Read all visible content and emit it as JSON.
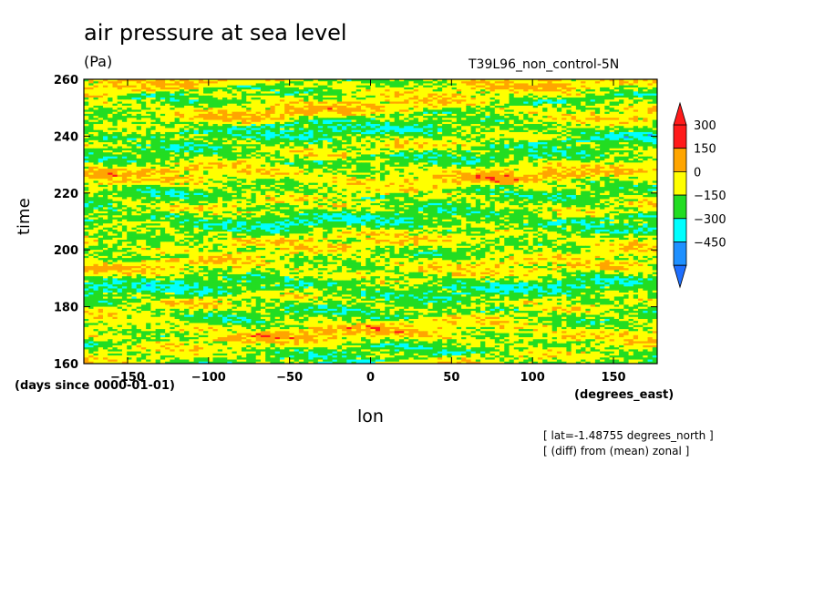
{
  "chart_data": {
    "type": "heatmap",
    "title": "air pressure at sea level",
    "units": "(Pa)",
    "run_label": "T39L96_non_control-5N",
    "xlabel": "lon",
    "ylabel": "time",
    "x_units": "(degrees_east)",
    "y_units": "(days since 0000-01-01)",
    "annotations": [
      "[ lat=-1.48755 degrees_north ]",
      "[ (diff) from (mean) zonal ]"
    ],
    "xlim": [
      -177,
      177
    ],
    "ylim": [
      160,
      260
    ],
    "xticks": [
      -150,
      -100,
      -50,
      0,
      50,
      100,
      150
    ],
    "xtick_labels": [
      "−150",
      "−100",
      "−50",
      "0",
      "50",
      "100",
      "150"
    ],
    "yticks": [
      160,
      180,
      200,
      220,
      240,
      260
    ],
    "ytick_labels": [
      "160",
      "180",
      "200",
      "220",
      "240",
      "260"
    ],
    "colorbar": {
      "levels": [
        300,
        150,
        0,
        -150,
        -300,
        -450
      ],
      "level_labels": [
        "300",
        "150",
        "0",
        "−150",
        "−300",
        "−450"
      ],
      "colors": [
        "#ff1a1a",
        "#ffa500",
        "#ffff00",
        "#22dd22",
        "#00ffff",
        "#1e90ff"
      ],
      "extend": "both",
      "top_arrow_color": "#ff1a1a",
      "bottom_arrow_color": "#1e6fff"
    }
  }
}
